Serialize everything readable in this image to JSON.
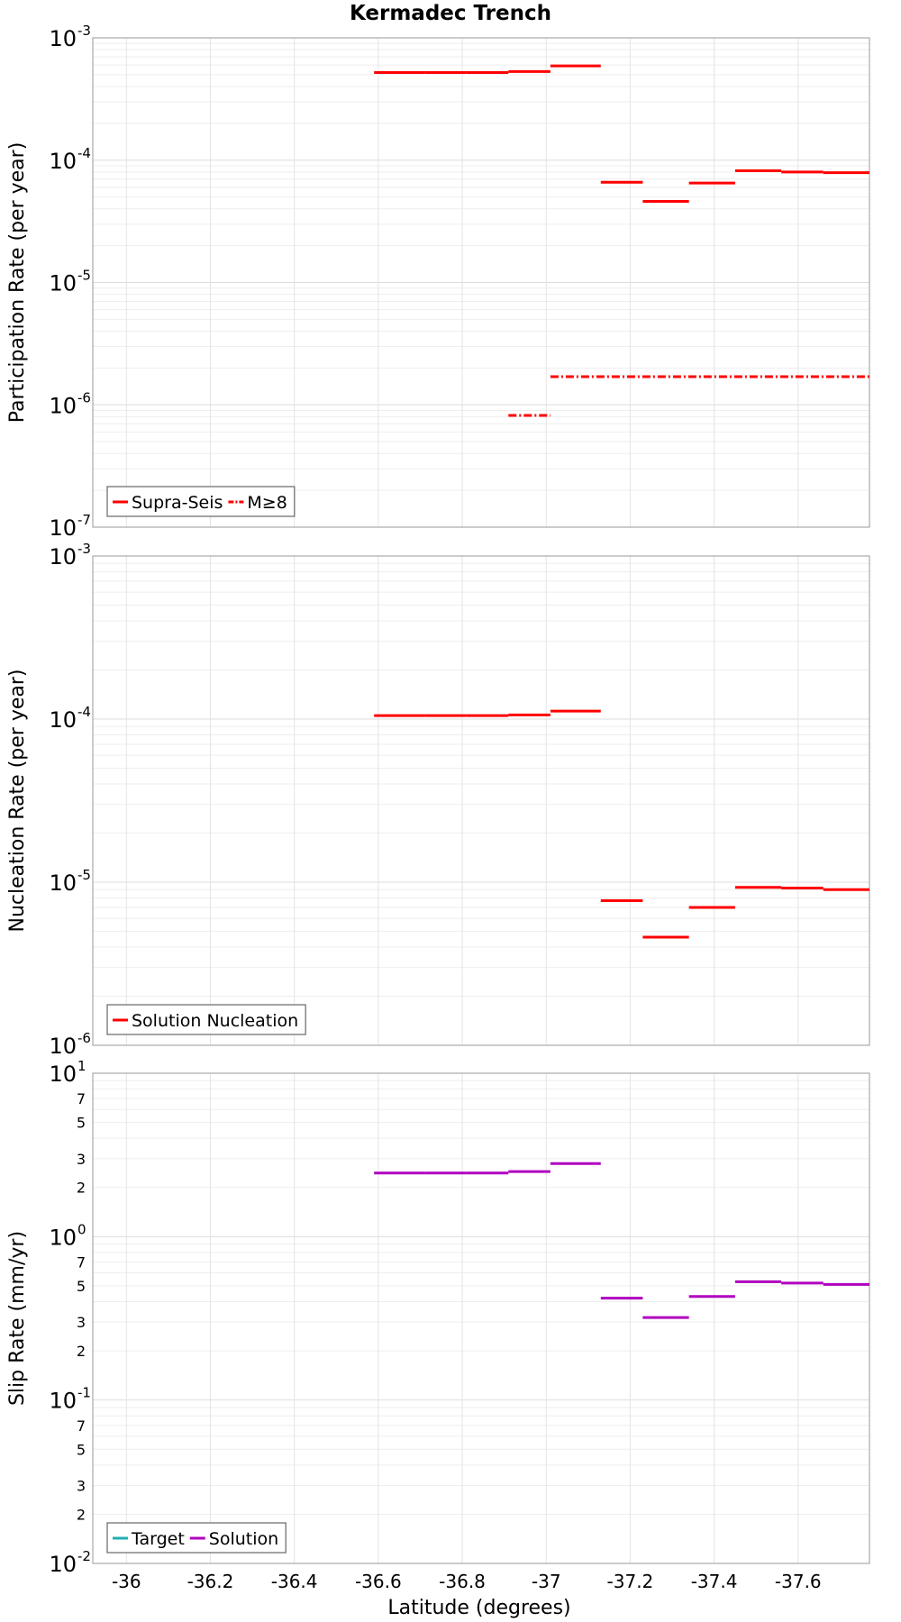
{
  "title": "Kermadec Trench",
  "xlabel": "Latitude (degrees)",
  "xticks": [
    "-36",
    "-36.2",
    "-36.4",
    "-36.6",
    "-36.8",
    "-37",
    "-37.2",
    "-37.4",
    "-37.6"
  ],
  "colors": {
    "red": "#ff0000",
    "purple": "#b000c0",
    "teal": "#20b0b0"
  },
  "chart_data": [
    {
      "type": "line",
      "style": "step segments",
      "ylabel": "Participation Rate (per year)",
      "xlim": [
        -35.92,
        -37.77
      ],
      "yscale": "log",
      "ylim": [
        1e-07,
        0.001
      ],
      "decade_labels": [
        {
          "base": "10",
          "exp": "-3"
        },
        {
          "base": "10",
          "exp": "-4"
        },
        {
          "base": "10",
          "exp": "-5"
        },
        {
          "base": "10",
          "exp": "-6"
        },
        {
          "base": "10",
          "exp": "-7"
        }
      ],
      "decade_exps": [
        -3,
        -4,
        -5,
        -6,
        -7
      ],
      "legend": [
        {
          "label": "Supra-Seis",
          "color": "#ff0000",
          "dash": "solid"
        },
        {
          "label": "M≥8",
          "color": "#ff0000",
          "dash": "dashdot"
        }
      ],
      "series": [
        {
          "name": "Supra-Seis",
          "color": "#ff0000",
          "dash": "solid",
          "segments": [
            {
              "x0": -36.59,
              "x1": -36.71,
              "y": 0.00052
            },
            {
              "x0": -36.71,
              "x1": -36.81,
              "y": 0.00052
            },
            {
              "x0": -36.81,
              "x1": -36.91,
              "y": 0.00052
            },
            {
              "x0": -36.91,
              "x1": -37.01,
              "y": 0.00053
            },
            {
              "x0": -37.01,
              "x1": -37.13,
              "y": 0.00059
            },
            {
              "x0": -37.13,
              "x1": -37.23,
              "y": 6.6e-05
            },
            {
              "x0": -37.23,
              "x1": -37.34,
              "y": 4.6e-05
            },
            {
              "x0": -37.34,
              "x1": -37.45,
              "y": 6.5e-05
            },
            {
              "x0": -37.45,
              "x1": -37.56,
              "y": 8.2e-05
            },
            {
              "x0": -37.56,
              "x1": -37.66,
              "y": 8e-05
            },
            {
              "x0": -37.66,
              "x1": -37.77,
              "y": 7.9e-05
            }
          ]
        },
        {
          "name": "M≥8",
          "color": "#ff0000",
          "dash": "dashdot",
          "segments": [
            {
              "x0": -36.91,
              "x1": -37.01,
              "y": 8.2e-07
            },
            {
              "x0": -37.01,
              "x1": -37.77,
              "y": 1.7e-06
            }
          ]
        }
      ]
    },
    {
      "type": "line",
      "style": "step segments",
      "ylabel": "Nucleation Rate (per year)",
      "xlim": [
        -35.92,
        -37.77
      ],
      "yscale": "log",
      "ylim": [
        1e-06,
        0.001
      ],
      "decade_labels": [
        {
          "base": "10",
          "exp": "-3"
        },
        {
          "base": "10",
          "exp": "-4"
        },
        {
          "base": "10",
          "exp": "-5"
        },
        {
          "base": "10",
          "exp": "-6"
        }
      ],
      "decade_exps": [
        -3,
        -4,
        -5,
        -6
      ],
      "legend": [
        {
          "label": "Solution Nucleation",
          "color": "#ff0000",
          "dash": "solid"
        }
      ],
      "series": [
        {
          "name": "Solution Nucleation",
          "color": "#ff0000",
          "dash": "solid",
          "segments": [
            {
              "x0": -36.59,
              "x1": -36.71,
              "y": 0.000105
            },
            {
              "x0": -36.71,
              "x1": -36.81,
              "y": 0.000105
            },
            {
              "x0": -36.81,
              "x1": -36.91,
              "y": 0.000105
            },
            {
              "x0": -36.91,
              "x1": -37.01,
              "y": 0.000106
            },
            {
              "x0": -37.01,
              "x1": -37.13,
              "y": 0.000112
            },
            {
              "x0": -37.13,
              "x1": -37.23,
              "y": 7.7e-06
            },
            {
              "x0": -37.23,
              "x1": -37.34,
              "y": 4.6e-06
            },
            {
              "x0": -37.34,
              "x1": -37.45,
              "y": 7e-06
            },
            {
              "x0": -37.45,
              "x1": -37.56,
              "y": 9.3e-06
            },
            {
              "x0": -37.56,
              "x1": -37.66,
              "y": 9.2e-06
            },
            {
              "x0": -37.66,
              "x1": -37.77,
              "y": 9e-06
            }
          ]
        }
      ]
    },
    {
      "type": "line",
      "style": "step segments",
      "ylabel": "Slip Rate (mm/yr)",
      "xlim": [
        -35.92,
        -37.77
      ],
      "yscale": "log",
      "ylim": [
        0.01,
        10
      ],
      "decade_labels": [
        {
          "base": "10",
          "exp": "1"
        },
        {
          "base": "10",
          "exp": "0"
        },
        {
          "base": "10",
          "exp": "-1"
        },
        {
          "base": "10",
          "exp": "-2"
        }
      ],
      "decade_exps": [
        1,
        0,
        -1,
        -2
      ],
      "minor_labels": [
        "7",
        "5",
        "3",
        "2"
      ],
      "minor_mantissas": [
        7,
        5,
        3,
        2
      ],
      "legend": [
        {
          "label": "Target",
          "color": "#20b0b0",
          "dash": "solid"
        },
        {
          "label": "Solution",
          "color": "#b000c0",
          "dash": "solid"
        }
      ],
      "series": [
        {
          "name": "Solution",
          "color": "#b000c0",
          "dash": "solid",
          "segments": [
            {
              "x0": -36.59,
              "x1": -36.71,
              "y": 2.45
            },
            {
              "x0": -36.71,
              "x1": -36.81,
              "y": 2.45
            },
            {
              "x0": -36.81,
              "x1": -36.91,
              "y": 2.45
            },
            {
              "x0": -36.91,
              "x1": -37.01,
              "y": 2.5
            },
            {
              "x0": -37.01,
              "x1": -37.13,
              "y": 2.8
            },
            {
              "x0": -37.13,
              "x1": -37.23,
              "y": 0.42
            },
            {
              "x0": -37.23,
              "x1": -37.34,
              "y": 0.32
            },
            {
              "x0": -37.34,
              "x1": -37.45,
              "y": 0.43
            },
            {
              "x0": -37.45,
              "x1": -37.56,
              "y": 0.53
            },
            {
              "x0": -37.56,
              "x1": -37.66,
              "y": 0.52
            },
            {
              "x0": -37.66,
              "x1": -37.77,
              "y": 0.51
            }
          ]
        }
      ]
    }
  ]
}
